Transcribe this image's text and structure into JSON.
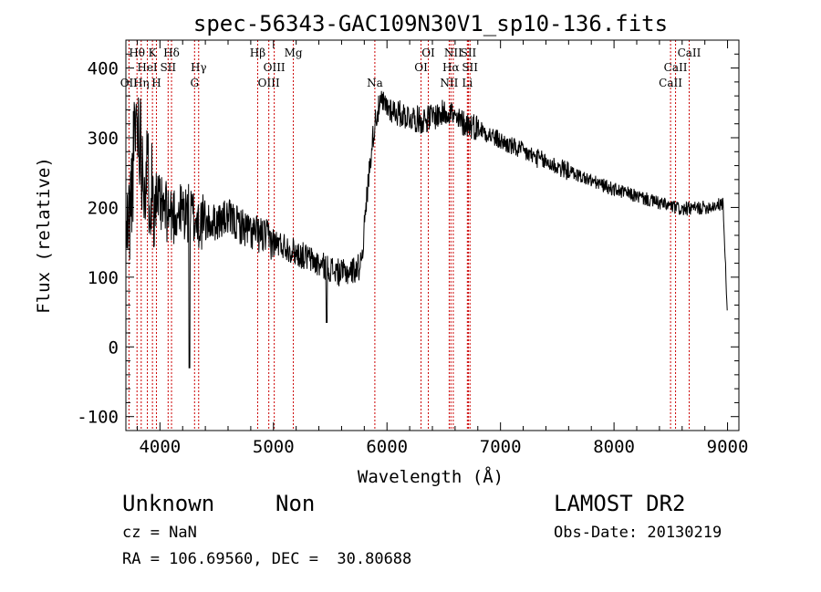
{
  "chart_data": {
    "type": "line",
    "title": "spec-56343-GAC109N30V1_sp10-136.fits",
    "xlabel": "Wavelength (Å)",
    "ylabel": "Flux (relative)",
    "xlim": [
      3700,
      9100
    ],
    "ylim": [
      -120,
      440
    ],
    "xticks": [
      4000,
      5000,
      6000,
      7000,
      8000,
      9000
    ],
    "yticks": [
      -100,
      0,
      100,
      200,
      300,
      400
    ],
    "grid": false,
    "line_color": "#000000",
    "marker_color": "#cc0000",
    "anchors": [
      [
        3700,
        150
      ],
      [
        3740,
        200
      ],
      [
        3760,
        250
      ],
      [
        3790,
        330
      ],
      [
        3820,
        310
      ],
      [
        3850,
        260
      ],
      [
        3900,
        240
      ],
      [
        3950,
        220
      ],
      [
        4000,
        200
      ],
      [
        4100,
        190
      ],
      [
        4200,
        195
      ],
      [
        4300,
        185
      ],
      [
        4400,
        175
      ],
      [
        4500,
        180
      ],
      [
        4600,
        185
      ],
      [
        4700,
        175
      ],
      [
        4800,
        165
      ],
      [
        4900,
        160
      ],
      [
        5000,
        150
      ],
      [
        5100,
        145
      ],
      [
        5200,
        135
      ],
      [
        5300,
        128
      ],
      [
        5400,
        118
      ],
      [
        5500,
        112
      ],
      [
        5600,
        105
      ],
      [
        5700,
        110
      ],
      [
        5760,
        115
      ],
      [
        5790,
        150
      ],
      [
        5820,
        210
      ],
      [
        5860,
        280
      ],
      [
        5900,
        330
      ],
      [
        5950,
        350
      ],
      [
        6000,
        345
      ],
      [
        6100,
        335
      ],
      [
        6200,
        330
      ],
      [
        6300,
        325
      ],
      [
        6400,
        330
      ],
      [
        6500,
        335
      ],
      [
        6560,
        340
      ],
      [
        6600,
        325
      ],
      [
        6700,
        320
      ],
      [
        6800,
        315
      ],
      [
        6900,
        305
      ],
      [
        7000,
        295
      ],
      [
        7200,
        280
      ],
      [
        7400,
        265
      ],
      [
        7600,
        252
      ],
      [
        7800,
        238
      ],
      [
        8000,
        226
      ],
      [
        8200,
        216
      ],
      [
        8400,
        206
      ],
      [
        8600,
        197
      ],
      [
        8800,
        200
      ],
      [
        8960,
        205
      ],
      [
        9000,
        40
      ]
    ],
    "lines": [
      {
        "name": "OII",
        "wavelength": 3727,
        "row": 2
      },
      {
        "name": "Hθ",
        "wavelength": 3798,
        "row": 0
      },
      {
        "name": "Hη",
        "wavelength": 3835,
        "row": 2
      },
      {
        "name": "HeI",
        "wavelength": 3889,
        "row": 1
      },
      {
        "name": "K",
        "wavelength": 3934,
        "row": 0
      },
      {
        "name": "H",
        "wavelength": 3969,
        "row": 2
      },
      {
        "name": "SII",
        "wavelength": 4072,
        "row": 1
      },
      {
        "name": "Hδ",
        "wavelength": 4102,
        "row": 0
      },
      {
        "name": "G",
        "wavelength": 4305,
        "row": 2
      },
      {
        "name": "Hγ",
        "wavelength": 4341,
        "row": 1
      },
      {
        "name": "Hβ",
        "wavelength": 4861,
        "row": 0
      },
      {
        "name": "OIII",
        "wavelength": 4959,
        "row": 2
      },
      {
        "name": "OIII",
        "wavelength": 5007,
        "row": 1
      },
      {
        "name": "Mg",
        "wavelength": 5175,
        "row": 0
      },
      {
        "name": "Na",
        "wavelength": 5893,
        "row": 2
      },
      {
        "name": "OI",
        "wavelength": 6300,
        "row": 1
      },
      {
        "name": "OI",
        "wavelength": 6364,
        "row": 0
      },
      {
        "name": "NII",
        "wavelength": 6548,
        "row": 2
      },
      {
        "name": "Hα",
        "wavelength": 6563,
        "row": 1
      },
      {
        "name": "NII",
        "wavelength": 6584,
        "row": 0
      },
      {
        "name": "SII",
        "wavelength": 6717,
        "row": 0
      },
      {
        "name": "Li",
        "wavelength": 6708,
        "row": 2
      },
      {
        "name": "SII",
        "wavelength": 6731,
        "row": 1
      },
      {
        "name": "CaII",
        "wavelength": 8498,
        "row": 2
      },
      {
        "name": "CaII",
        "wavelength": 8542,
        "row": 1
      },
      {
        "name": "CaII",
        "wavelength": 8662,
        "row": 0
      }
    ]
  },
  "info": {
    "classification": "Unknown",
    "subclass": "Non",
    "cz": "cz = NaN",
    "coords": "RA = 106.69560, DEC =  30.80688",
    "survey": "LAMOST DR2",
    "obs_date": "Obs-Date: 20130219"
  }
}
